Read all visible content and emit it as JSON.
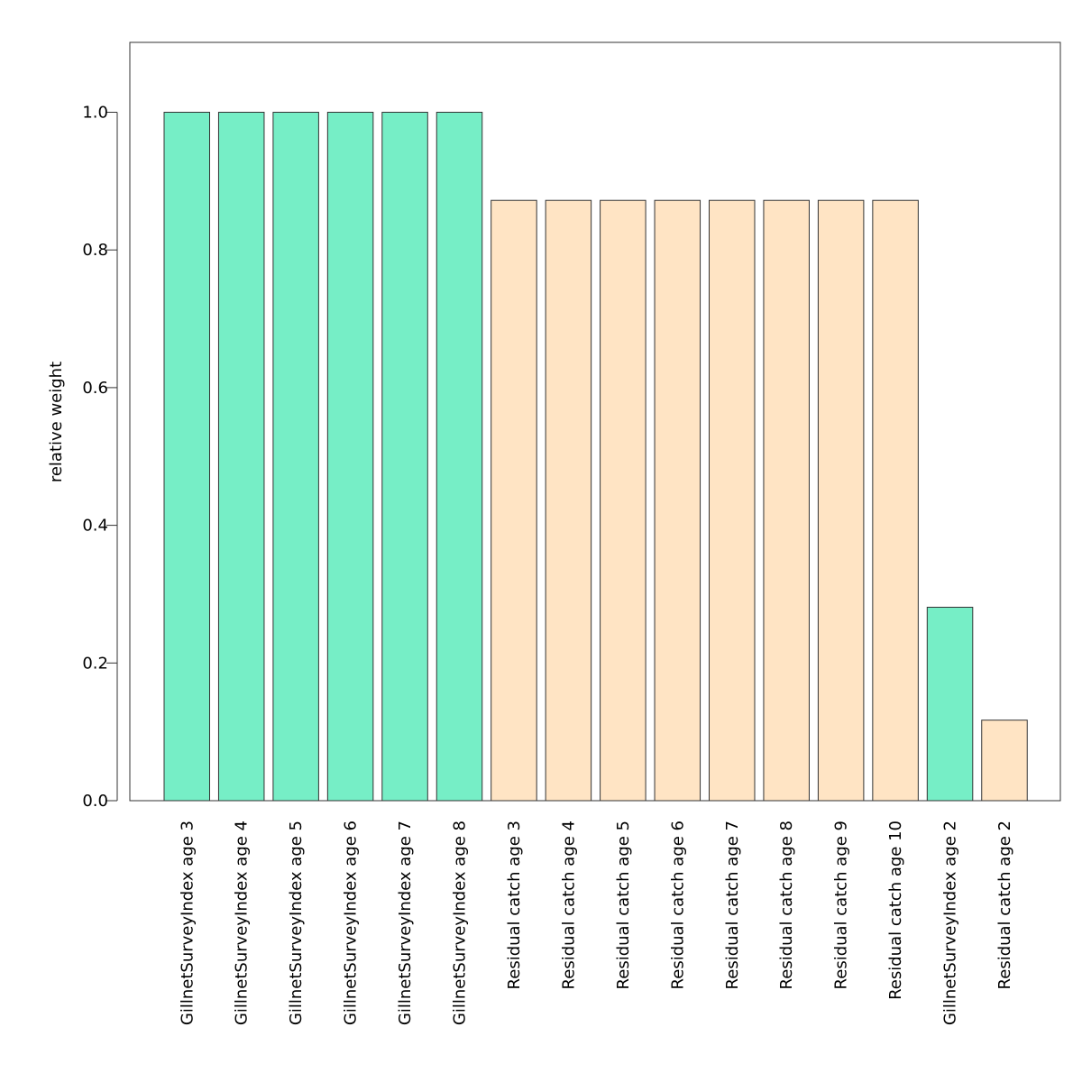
{
  "chart_data": {
    "type": "bar",
    "title": "",
    "xlabel": "",
    "ylabel": "relative weight",
    "ylim": [
      0,
      1.1
    ],
    "yticks": [
      0.0,
      0.2,
      0.4,
      0.6,
      0.8,
      1.0
    ],
    "ytick_labels": [
      "0.0",
      "0.2",
      "0.4",
      "0.6",
      "0.8",
      "1.0"
    ],
    "grid": false,
    "legend": "none",
    "colors": {
      "GillnetSurveyIndex": "#76EEC6",
      "Residual catch": "#FFE4C4",
      "bar_stroke": "#333333",
      "axis": "#333333"
    },
    "categories": [
      "GillnetSurveyIndex age 3",
      "GillnetSurveyIndex age 4",
      "GillnetSurveyIndex age 5",
      "GillnetSurveyIndex age 6",
      "GillnetSurveyIndex age 7",
      "GillnetSurveyIndex age 8",
      "Residual catch age 3",
      "Residual catch age 4",
      "Residual catch age 5",
      "Residual catch age 6",
      "Residual catch age 7",
      "Residual catch age 8",
      "Residual catch age 9",
      "Residual catch age 10",
      "GillnetSurveyIndex age 2",
      "Residual catch age 2"
    ],
    "groups": [
      "GillnetSurveyIndex",
      "GillnetSurveyIndex",
      "GillnetSurveyIndex",
      "GillnetSurveyIndex",
      "GillnetSurveyIndex",
      "GillnetSurveyIndex",
      "Residual catch",
      "Residual catch",
      "Residual catch",
      "Residual catch",
      "Residual catch",
      "Residual catch",
      "Residual catch",
      "Residual catch",
      "GillnetSurveyIndex",
      "Residual catch"
    ],
    "values": [
      1.0,
      1.0,
      1.0,
      1.0,
      1.0,
      1.0,
      0.872,
      0.872,
      0.872,
      0.872,
      0.872,
      0.872,
      0.872,
      0.872,
      0.281,
      0.117
    ]
  }
}
